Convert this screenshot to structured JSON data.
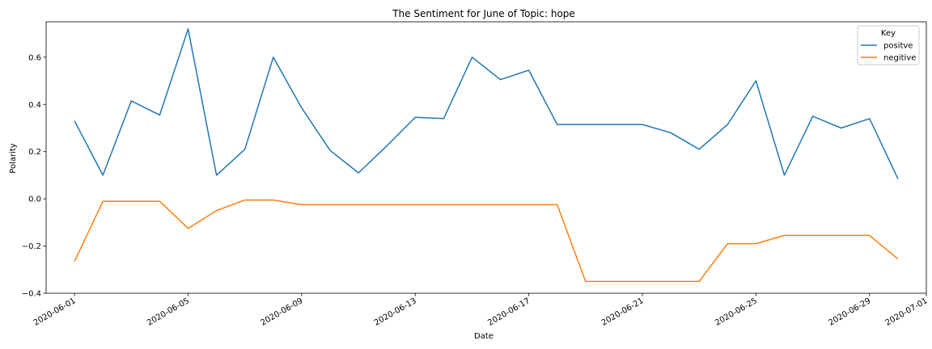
{
  "chart_data": {
    "type": "line",
    "title": "The Sentiment for June of Topic: hope",
    "xlabel": "Date",
    "ylabel": "Polarity",
    "x": [
      "2020-06-01",
      "2020-06-02",
      "2020-06-03",
      "2020-06-04",
      "2020-06-05",
      "2020-06-06",
      "2020-06-07",
      "2020-06-08",
      "2020-06-09",
      "2020-06-10",
      "2020-06-11",
      "2020-06-12",
      "2020-06-13",
      "2020-06-14",
      "2020-06-15",
      "2020-06-16",
      "2020-06-17",
      "2020-06-18",
      "2020-06-19",
      "2020-06-20",
      "2020-06-21",
      "2020-06-22",
      "2020-06-23",
      "2020-06-24",
      "2020-06-25",
      "2020-06-26",
      "2020-06-27",
      "2020-06-28",
      "2020-06-29",
      "2020-06-30"
    ],
    "xlim": [
      "2020-05-31",
      "2020-07-01"
    ],
    "ylim": [
      -0.4,
      0.75
    ],
    "x_ticks": [
      "2020-06-01",
      "2020-06-05",
      "2020-06-09",
      "2020-06-13",
      "2020-06-17",
      "2020-06-21",
      "2020-06-25",
      "2020-06-29",
      "2020-07-01"
    ],
    "y_ticks": [
      "−0.4",
      "−0.2",
      "0.0",
      "0.2",
      "0.4",
      "0.6"
    ],
    "grid": false,
    "legend": {
      "title": "Key",
      "placement": "top-right"
    },
    "series": [
      {
        "name": "positve",
        "color": "#1f77b4",
        "values": [
          0.33,
          0.1,
          0.415,
          0.355,
          0.72,
          0.1,
          0.21,
          0.6,
          0.385,
          0.205,
          0.11,
          0.225,
          0.345,
          0.34,
          0.6,
          0.505,
          0.545,
          0.315,
          0.315,
          0.315,
          0.315,
          0.28,
          0.21,
          0.315,
          0.5,
          0.1,
          0.35,
          0.3,
          0.34,
          0.085
        ]
      },
      {
        "name": "negitive",
        "color": "#ff7f0e",
        "values": [
          -0.265,
          -0.01,
          -0.01,
          -0.01,
          -0.125,
          -0.05,
          -0.005,
          -0.005,
          -0.025,
          -0.025,
          -0.025,
          -0.025,
          -0.025,
          -0.025,
          -0.025,
          -0.025,
          -0.025,
          -0.025,
          -0.35,
          -0.35,
          -0.35,
          -0.35,
          -0.35,
          -0.19,
          -0.19,
          -0.155,
          -0.155,
          -0.155,
          -0.155,
          -0.255
        ]
      }
    ]
  }
}
